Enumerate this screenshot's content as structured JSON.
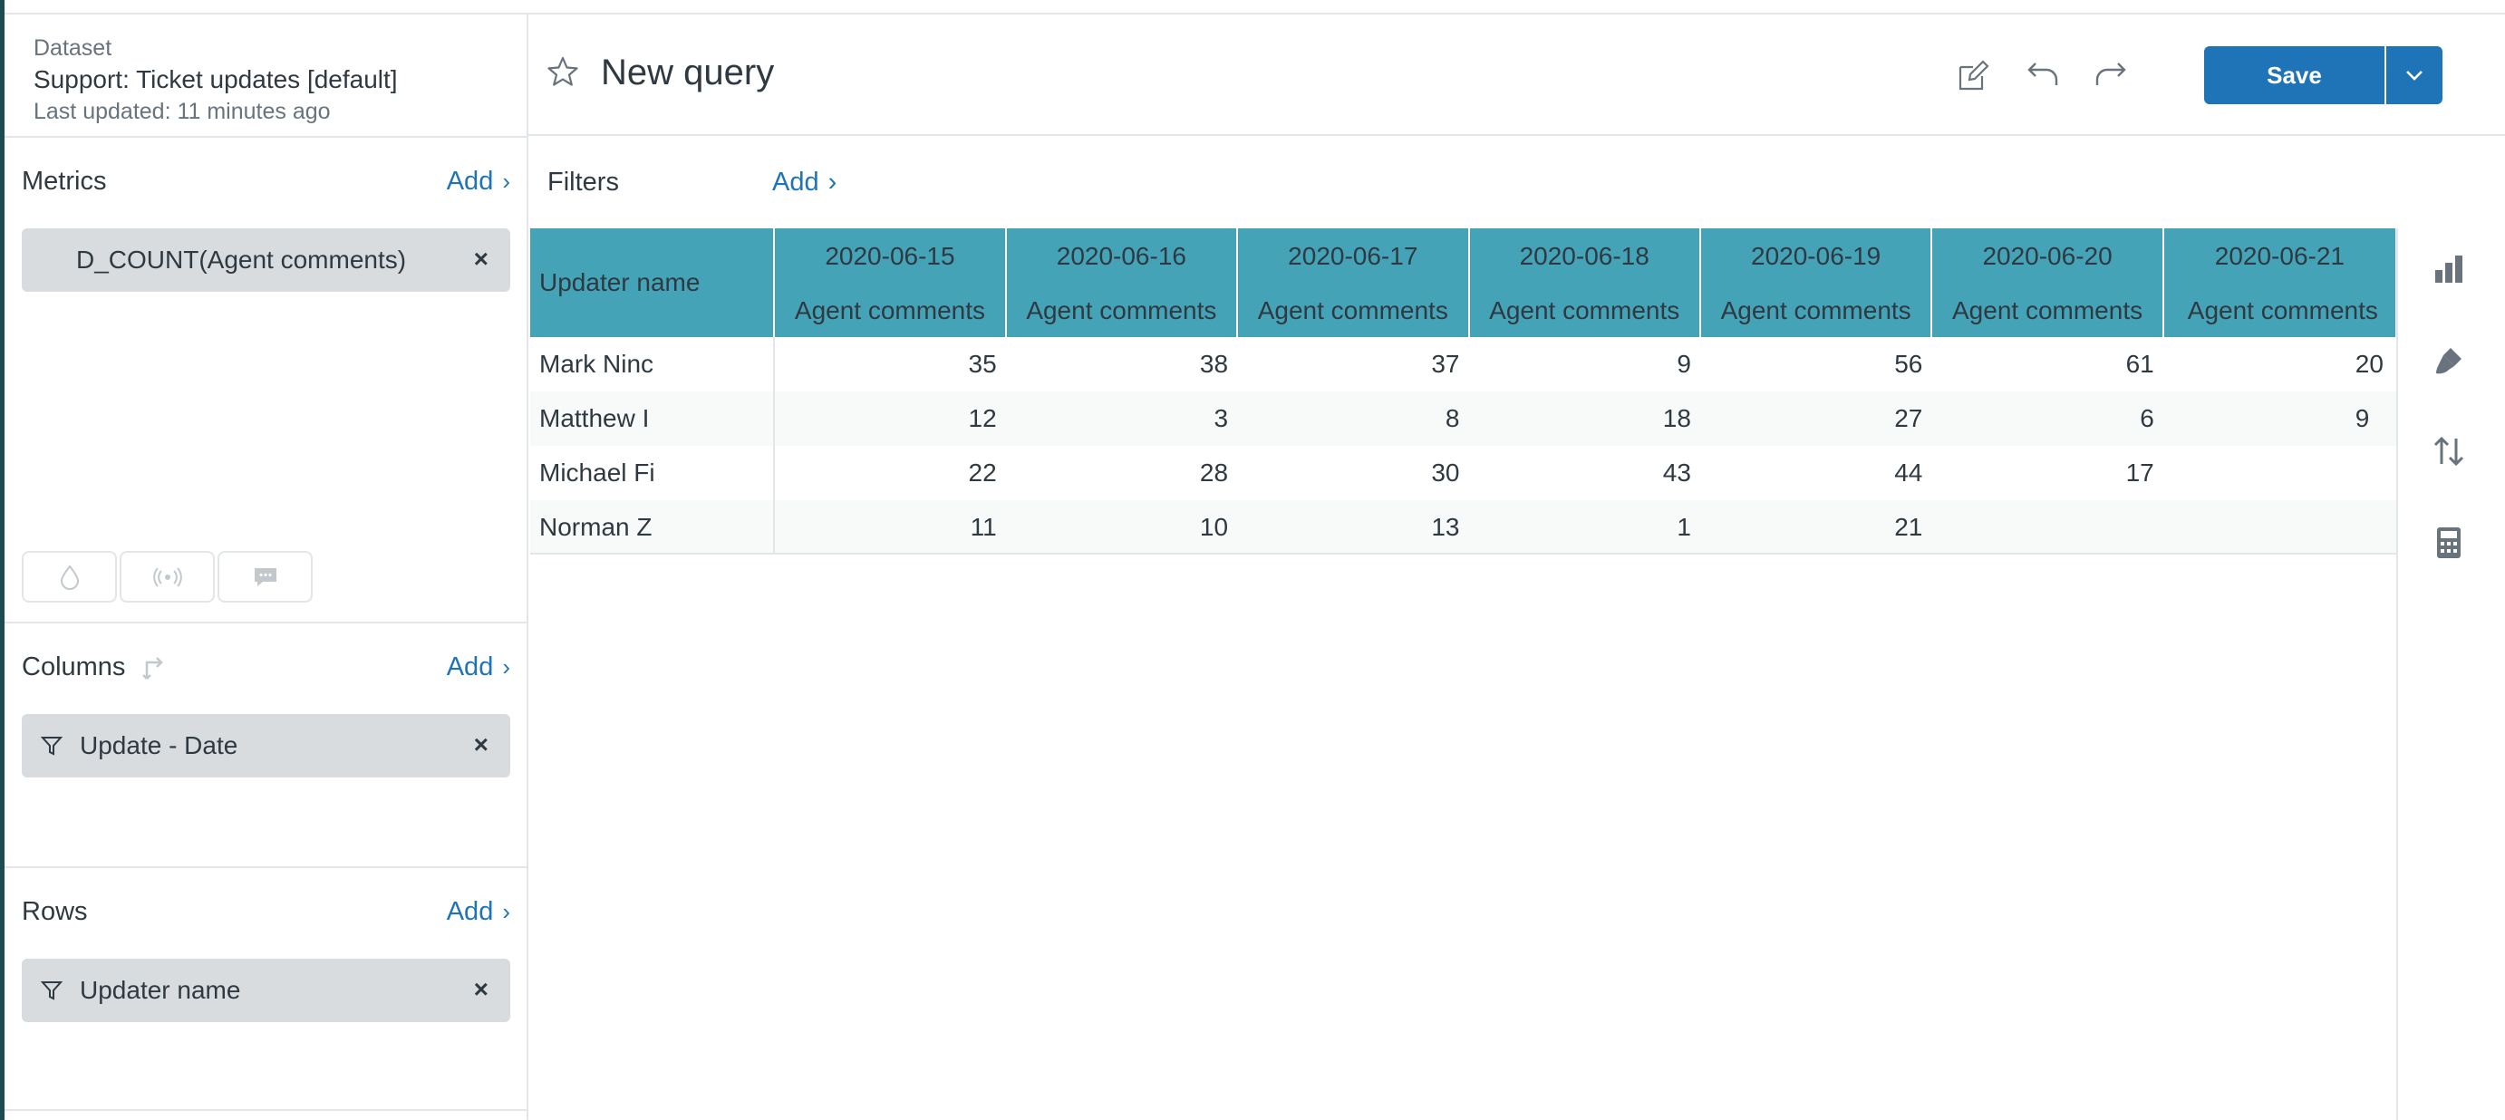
{
  "sidebar": {
    "dataset_caption": "Dataset",
    "dataset_name": "Support: Ticket updates [default]",
    "last_updated": "Last updated: 11 minutes ago",
    "metrics": {
      "title": "Metrics",
      "add_label": "Add",
      "pill": "D_COUNT(Agent comments)"
    },
    "columns": {
      "title": "Columns",
      "add_label": "Add",
      "pill": "Update - Date"
    },
    "rows": {
      "title": "Rows",
      "add_label": "Add",
      "pill": "Updater name"
    },
    "close_glyph": "×",
    "chevron_glyph": "›"
  },
  "header": {
    "title": "New query",
    "save_label": "Save"
  },
  "filters": {
    "title": "Filters",
    "add_label": "Add"
  },
  "table": {
    "row_header": "Updater name",
    "dates": [
      "2020-06-15",
      "2020-06-16",
      "2020-06-17",
      "2020-06-18",
      "2020-06-19",
      "2020-06-20",
      "2020-06-21"
    ],
    "metric_label": "Agent comments",
    "rows": [
      {
        "name": "Mark Ninc",
        "values": [
          "35",
          "38",
          "37",
          "9",
          "56",
          "61",
          "20"
        ]
      },
      {
        "name": "Matthew I",
        "values": [
          "12",
          "3",
          "8",
          "18",
          "27",
          "6",
          "9"
        ]
      },
      {
        "name": "Michael Fi",
        "values": [
          "22",
          "28",
          "30",
          "43",
          "44",
          "17",
          ""
        ]
      },
      {
        "name": "Norman Z",
        "values": [
          "11",
          "10",
          "13",
          "1",
          "21",
          "",
          ""
        ]
      }
    ]
  },
  "colors": {
    "accent": "#1f73b7",
    "header_bg": "#44a3b7",
    "pill_bg": "#d8dcde"
  },
  "icons": [
    "star-icon",
    "edit-icon",
    "undo-icon",
    "redo-icon",
    "chevron-down-icon",
    "bar-chart-icon",
    "brush-icon",
    "sort-icon",
    "calculator-icon",
    "drop-icon",
    "broadcast-icon",
    "comment-icon",
    "swap-icon",
    "filter-icon",
    "close-icon"
  ]
}
